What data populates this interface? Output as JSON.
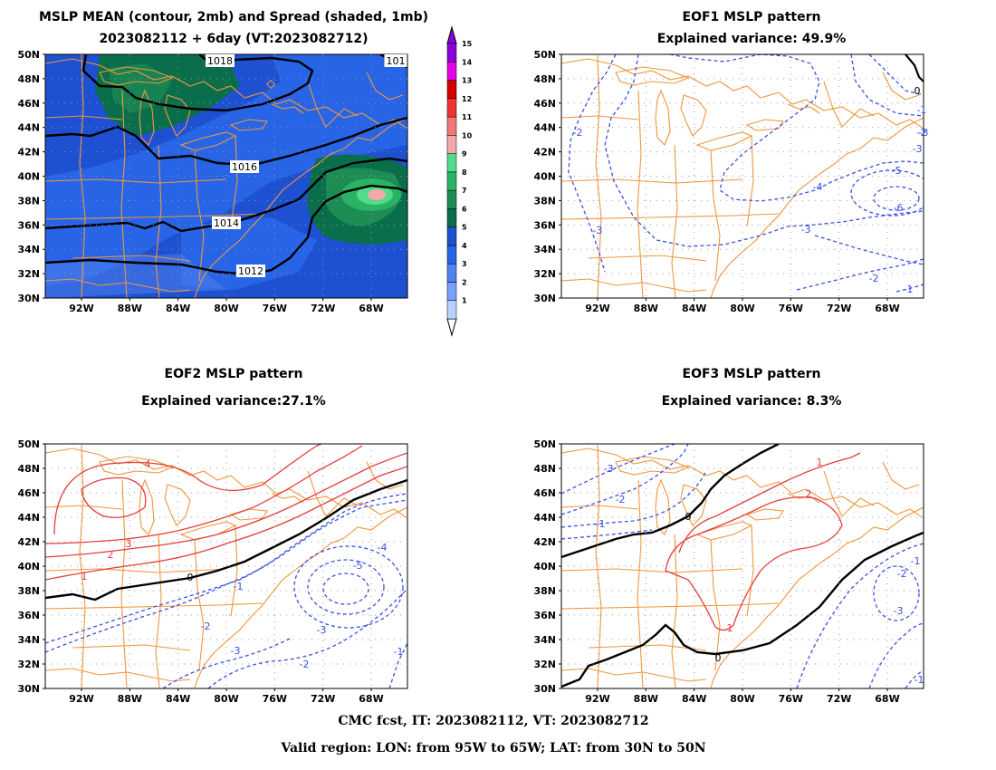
{
  "panels": {
    "mean": {
      "title_line1": "MSLP MEAN (contour, 2mb) and Spread (shaded, 1mb)",
      "title_line2": "2023082112 + 6day (VT:2023082712)",
      "contour_labels": [
        "1018",
        "1016",
        "1014",
        "1012",
        "101"
      ]
    },
    "eof1": {
      "title_line1": "EOF1 MSLP pattern",
      "title_line2": "Explained variance: 49.9%",
      "contour_labels": [
        "-2",
        "-3",
        "-4",
        "-5",
        "-6",
        "-3",
        "-2",
        "-1",
        "-1",
        "-2",
        "-3",
        "0",
        "-3"
      ]
    },
    "eof2": {
      "title_line1": "EOF2 MSLP pattern",
      "title_line2": "Explained variance:27.1%",
      "contour_labels": [
        "4",
        "3",
        "2",
        "1",
        "0",
        "-1",
        "-2",
        "-3",
        "-2",
        "-3",
        "-4",
        "-5",
        "-1"
      ]
    },
    "eof3": {
      "title_line1": "EOF3 MSLP pattern",
      "title_line2": "Explained variance: 8.3%",
      "contour_labels": [
        "-3",
        "-2",
        "-1",
        "0",
        "1",
        "2",
        "1",
        "0",
        "-1",
        "-2",
        "-3",
        "-1"
      ]
    }
  },
  "axes": {
    "lat_labels": [
      "50N",
      "48N",
      "46N",
      "44N",
      "42N",
      "40N",
      "38N",
      "36N",
      "34N",
      "32N",
      "30N"
    ],
    "lon_labels": [
      "92W",
      "88W",
      "84W",
      "80W",
      "76W",
      "72W",
      "68W"
    ]
  },
  "colorbar": {
    "labels": [
      "1",
      "2",
      "3",
      "4",
      "5",
      "6",
      "7",
      "8",
      "9",
      "10",
      "11",
      "12",
      "13",
      "14",
      "15"
    ],
    "colors": [
      "#b4d2ff",
      "#78a0ff",
      "#5082f0",
      "#2864e6",
      "#1e50d2",
      "#0a6e4b",
      "#1e8c55",
      "#28b464",
      "#50dc8c",
      "#f0aaaa",
      "#f07878",
      "#f03232",
      "#d20000",
      "#e600e6",
      "#8c00dc"
    ]
  },
  "colors": {
    "coast": "#f0963c",
    "neg": "#3c50e6",
    "pos": "#e63c3c",
    "zero": "#000000"
  },
  "footer": {
    "line1": "CMC fcst, IT: 2023082112, VT: 2023082712",
    "line2": "Valid region: LON: from 95W to 65W; LAT: from 30N to 50N"
  }
}
